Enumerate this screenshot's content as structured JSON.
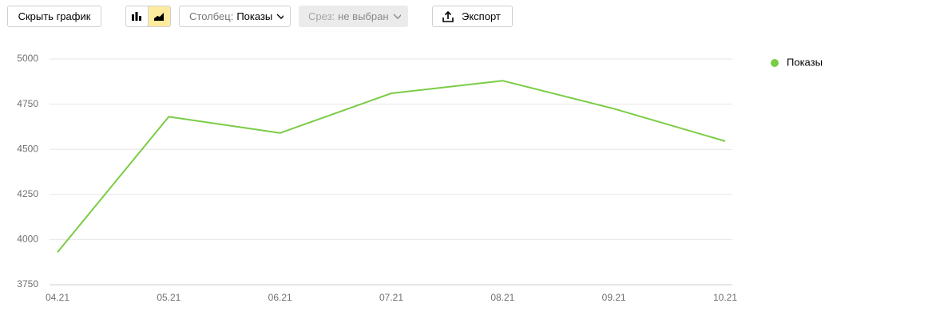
{
  "toolbar": {
    "hide_chart": "Скрыть график",
    "column_label": "Столбец:",
    "column_value": "Показы",
    "slice_label": "Срез:",
    "slice_value": "не выбран",
    "export": "Экспорт"
  },
  "chart_data": {
    "type": "line",
    "categories": [
      "04.21",
      "05.21",
      "06.21",
      "07.21",
      "08.21",
      "09.21",
      "10.21"
    ],
    "series": [
      {
        "name": "Показы",
        "color": "#7acc45",
        "values": [
          3930,
          4680,
          4590,
          4810,
          4880,
          4725,
          4545
        ]
      }
    ],
    "ylim": [
      3750,
      5000
    ],
    "yticks": [
      3750,
      4000,
      4250,
      4500,
      4750,
      5000
    ],
    "grid": true,
    "legend": "right"
  }
}
